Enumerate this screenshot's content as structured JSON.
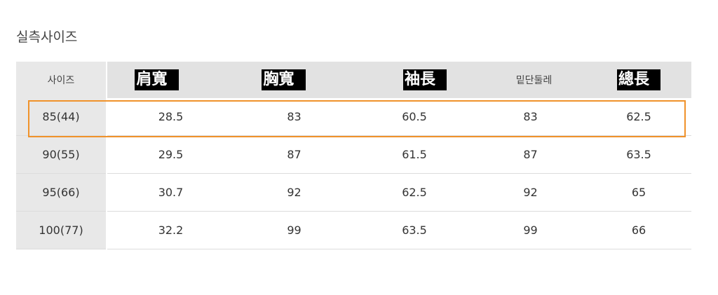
{
  "title": "실측사이즈",
  "headers": [
    {
      "label": "사이즈",
      "masked": false
    },
    {
      "label": "肩寬",
      "masked": true
    },
    {
      "label": "胸寬",
      "masked": true
    },
    {
      "label": "袖長",
      "masked": true
    },
    {
      "label": "밑단둘레",
      "masked": false
    },
    {
      "label": "總長",
      "masked": true
    }
  ],
  "rows": [
    [
      "85(44)",
      "28.5",
      "83",
      "60.5",
      "83",
      "62.5"
    ],
    [
      "90(55)",
      "29.5",
      "87",
      "61.5",
      "87",
      "63.5"
    ],
    [
      "95(66)",
      "30.7",
      "92",
      "62.5",
      "92",
      "65"
    ],
    [
      "100(77)",
      "32.2",
      "99",
      "63.5",
      "99",
      "66"
    ]
  ],
  "highlighted_row": 0,
  "colors": {
    "highlight": "#f0922a",
    "header_bg": "#e2e2e2",
    "mask_bg": "#000000"
  }
}
